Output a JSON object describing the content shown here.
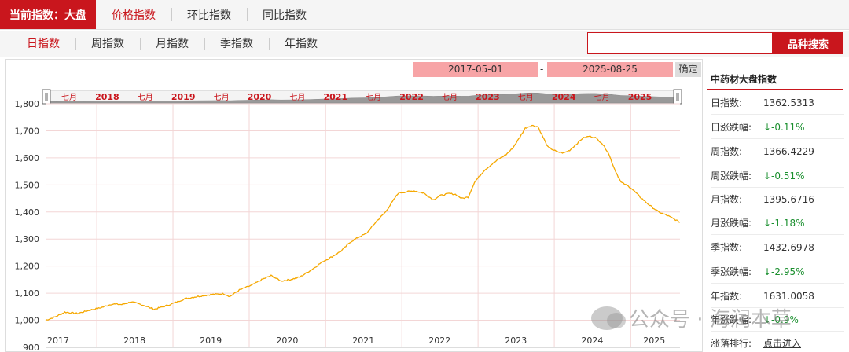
{
  "topbar": {
    "current": "当前指数：大盘",
    "tabs": [
      "价格指数",
      "环比指数",
      "同比指数"
    ]
  },
  "subbar": {
    "items": [
      "日指数",
      "周指数",
      "月指数",
      "季指数",
      "年指数"
    ],
    "search_button": "品种搜索"
  },
  "range": {
    "start": "2017-05-01",
    "separator": "-",
    "end": "2025-08-25",
    "confirm": "确定"
  },
  "navigator": {
    "labels": [
      {
        "text": "七月",
        "year": false
      },
      {
        "text": "2018",
        "year": true
      },
      {
        "text": "七月",
        "year": false
      },
      {
        "text": "2019",
        "year": true
      },
      {
        "text": "七月",
        "year": false
      },
      {
        "text": "2020",
        "year": true
      },
      {
        "text": "七月",
        "year": false
      },
      {
        "text": "2021",
        "year": true
      },
      {
        "text": "七月",
        "year": false
      },
      {
        "text": "2022",
        "year": true
      },
      {
        "text": "七月",
        "year": false
      },
      {
        "text": "2023",
        "year": true
      },
      {
        "text": "七月",
        "year": false
      },
      {
        "text": "2024",
        "year": true
      },
      {
        "text": "七月",
        "year": false
      },
      {
        "text": "2025",
        "year": true
      }
    ]
  },
  "chart_data": {
    "type": "line",
    "title": "",
    "xlabel": "",
    "ylabel": "",
    "ylim": [
      900,
      1800
    ],
    "yticks": [
      "1,800",
      "1,700",
      "1,600",
      "1,500",
      "1,400",
      "1,300",
      "1,200",
      "1,100",
      "1,000",
      "900"
    ],
    "xticks": [
      "2017",
      "2018",
      "2019",
      "2020",
      "2021",
      "2022",
      "2023",
      "2024",
      "2025"
    ],
    "grid": true,
    "color": "#f5a800",
    "series": [
      {
        "x": [
          "2017-05-01",
          "2017-06-15",
          "2017-08-01",
          "2017-10-01",
          "2017-12-01",
          "2018-01-15",
          "2018-03-15",
          "2018-05-01",
          "2018-06-15",
          "2018-08-15",
          "2018-10-01",
          "2018-11-15",
          "2019-01-01",
          "2019-03-01",
          "2019-05-01",
          "2019-07-01",
          "2019-09-01",
          "2019-10-01",
          "2019-11-15",
          "2020-01-15",
          "2020-03-01",
          "2020-04-15",
          "2020-06-01",
          "2020-07-15",
          "2020-09-01",
          "2020-11-01",
          "2020-12-15",
          "2021-02-01",
          "2021-03-15",
          "2021-05-01",
          "2021-06-15",
          "2021-07-15",
          "2021-09-01",
          "2021-10-15",
          "2021-12-15",
          "2022-03-01",
          "2022-04-15",
          "2022-06-01",
          "2022-07-01",
          "2022-08-15",
          "2022-09-15",
          "2022-10-15",
          "2022-11-15",
          "2022-12-15",
          "2023-02-01",
          "2023-03-15",
          "2023-04-15",
          "2023-05-15",
          "2023-06-15",
          "2023-07-15",
          "2023-08-15",
          "2023-09-15",
          "2023-10-15",
          "2023-12-01",
          "2024-01-15",
          "2024-02-15",
          "2024-03-15",
          "2024-04-15",
          "2024-05-15",
          "2024-06-15",
          "2024-07-15",
          "2024-08-15",
          "2024-09-15",
          "2024-10-15",
          "2024-11-15",
          "2025-01-01",
          "2025-02-15",
          "2025-04-01",
          "2025-05-15",
          "2025-07-01",
          "2025-08-25"
        ],
        "values": [
          1000,
          1012,
          1030,
          1025,
          1038,
          1045,
          1060,
          1058,
          1068,
          1055,
          1040,
          1050,
          1062,
          1080,
          1088,
          1095,
          1098,
          1088,
          1112,
          1130,
          1150,
          1165,
          1145,
          1150,
          1160,
          1190,
          1215,
          1235,
          1255,
          1290,
          1310,
          1320,
          1365,
          1400,
          1470,
          1478,
          1470,
          1445,
          1460,
          1468,
          1465,
          1450,
          1455,
          1510,
          1555,
          1580,
          1598,
          1612,
          1635,
          1670,
          1710,
          1720,
          1715,
          1640,
          1622,
          1618,
          1628,
          1650,
          1672,
          1680,
          1675,
          1655,
          1620,
          1560,
          1510,
          1490,
          1455,
          1425,
          1400,
          1385,
          1362
        ]
      }
    ]
  },
  "panel": {
    "title": "中药材大盘指数",
    "rows": [
      {
        "label": "日指数:",
        "value": "1362.5313",
        "type": "plain"
      },
      {
        "label": "日涨跌幅:",
        "value": "↓-0.11%",
        "type": "down"
      },
      {
        "label": "周指数:",
        "value": "1366.4229",
        "type": "plain"
      },
      {
        "label": "周涨跌幅:",
        "value": "↓-0.51%",
        "type": "down"
      },
      {
        "label": "月指数:",
        "value": "1395.6716",
        "type": "plain"
      },
      {
        "label": "月涨跌幅:",
        "value": "↓-1.18%",
        "type": "down"
      },
      {
        "label": "季指数:",
        "value": "1432.6978",
        "type": "plain"
      },
      {
        "label": "季涨跌幅:",
        "value": "↓-2.95%",
        "type": "down"
      },
      {
        "label": "年指数:",
        "value": "1631.0058",
        "type": "plain"
      },
      {
        "label": "年涨跌幅:",
        "value": "↓-0.9%",
        "type": "down"
      },
      {
        "label": "涨落排行:",
        "value": "点击进入",
        "type": "link"
      }
    ]
  },
  "watermark": {
    "text": "公众号 · 海润本草"
  }
}
